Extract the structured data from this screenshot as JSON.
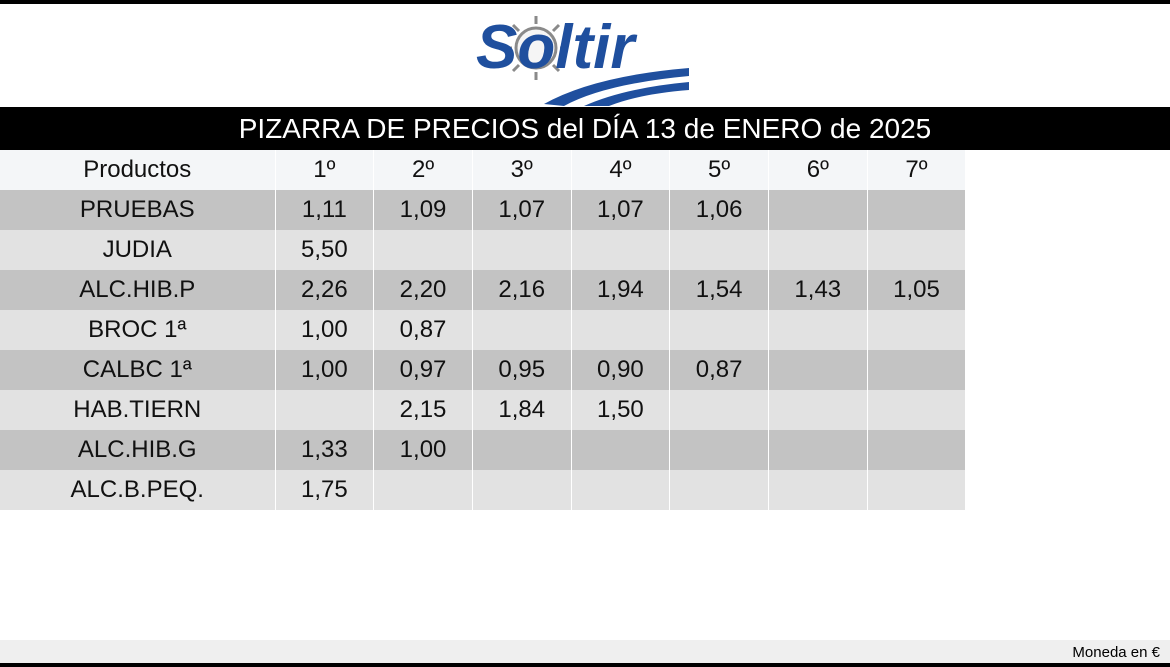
{
  "logo": {
    "text": "Soltir"
  },
  "title": "PIZARRA DE PRECIOS del DÍA 13 de ENERO de 2025",
  "table": {
    "headers": [
      "Productos",
      "1º",
      "2º",
      "3º",
      "4º",
      "5º",
      "6º",
      "7º"
    ],
    "rows": [
      [
        "PRUEBAS",
        "1,11",
        "1,09",
        "1,07",
        "1,07",
        "1,06",
        "",
        ""
      ],
      [
        "JUDIA",
        "5,50",
        "",
        "",
        "",
        "",
        "",
        ""
      ],
      [
        "ALC.HIB.P",
        "2,26",
        "2,20",
        "2,16",
        "1,94",
        "1,54",
        "1,43",
        "1,05"
      ],
      [
        "BROC 1ª",
        "1,00",
        "0,87",
        "",
        "",
        "",
        "",
        ""
      ],
      [
        "CALBC 1ª",
        "1,00",
        "0,97",
        "0,95",
        "0,90",
        "0,87",
        "",
        ""
      ],
      [
        "HAB.TIERN",
        "",
        "2,15",
        "1,84",
        "1,50",
        "",
        "",
        ""
      ],
      [
        "ALC.HIB.G",
        "1,33",
        "1,00",
        "",
        "",
        "",
        "",
        ""
      ],
      [
        "ALC.B.PEQ.",
        "1,75",
        "",
        "",
        "",
        "",
        "",
        ""
      ]
    ]
  },
  "footer": {
    "currency_note": "Moneda en €"
  },
  "colors": {
    "brand_blue": "#1f4f9e",
    "sun_gray": "#8a8a8a",
    "title_bar": "#000000"
  }
}
